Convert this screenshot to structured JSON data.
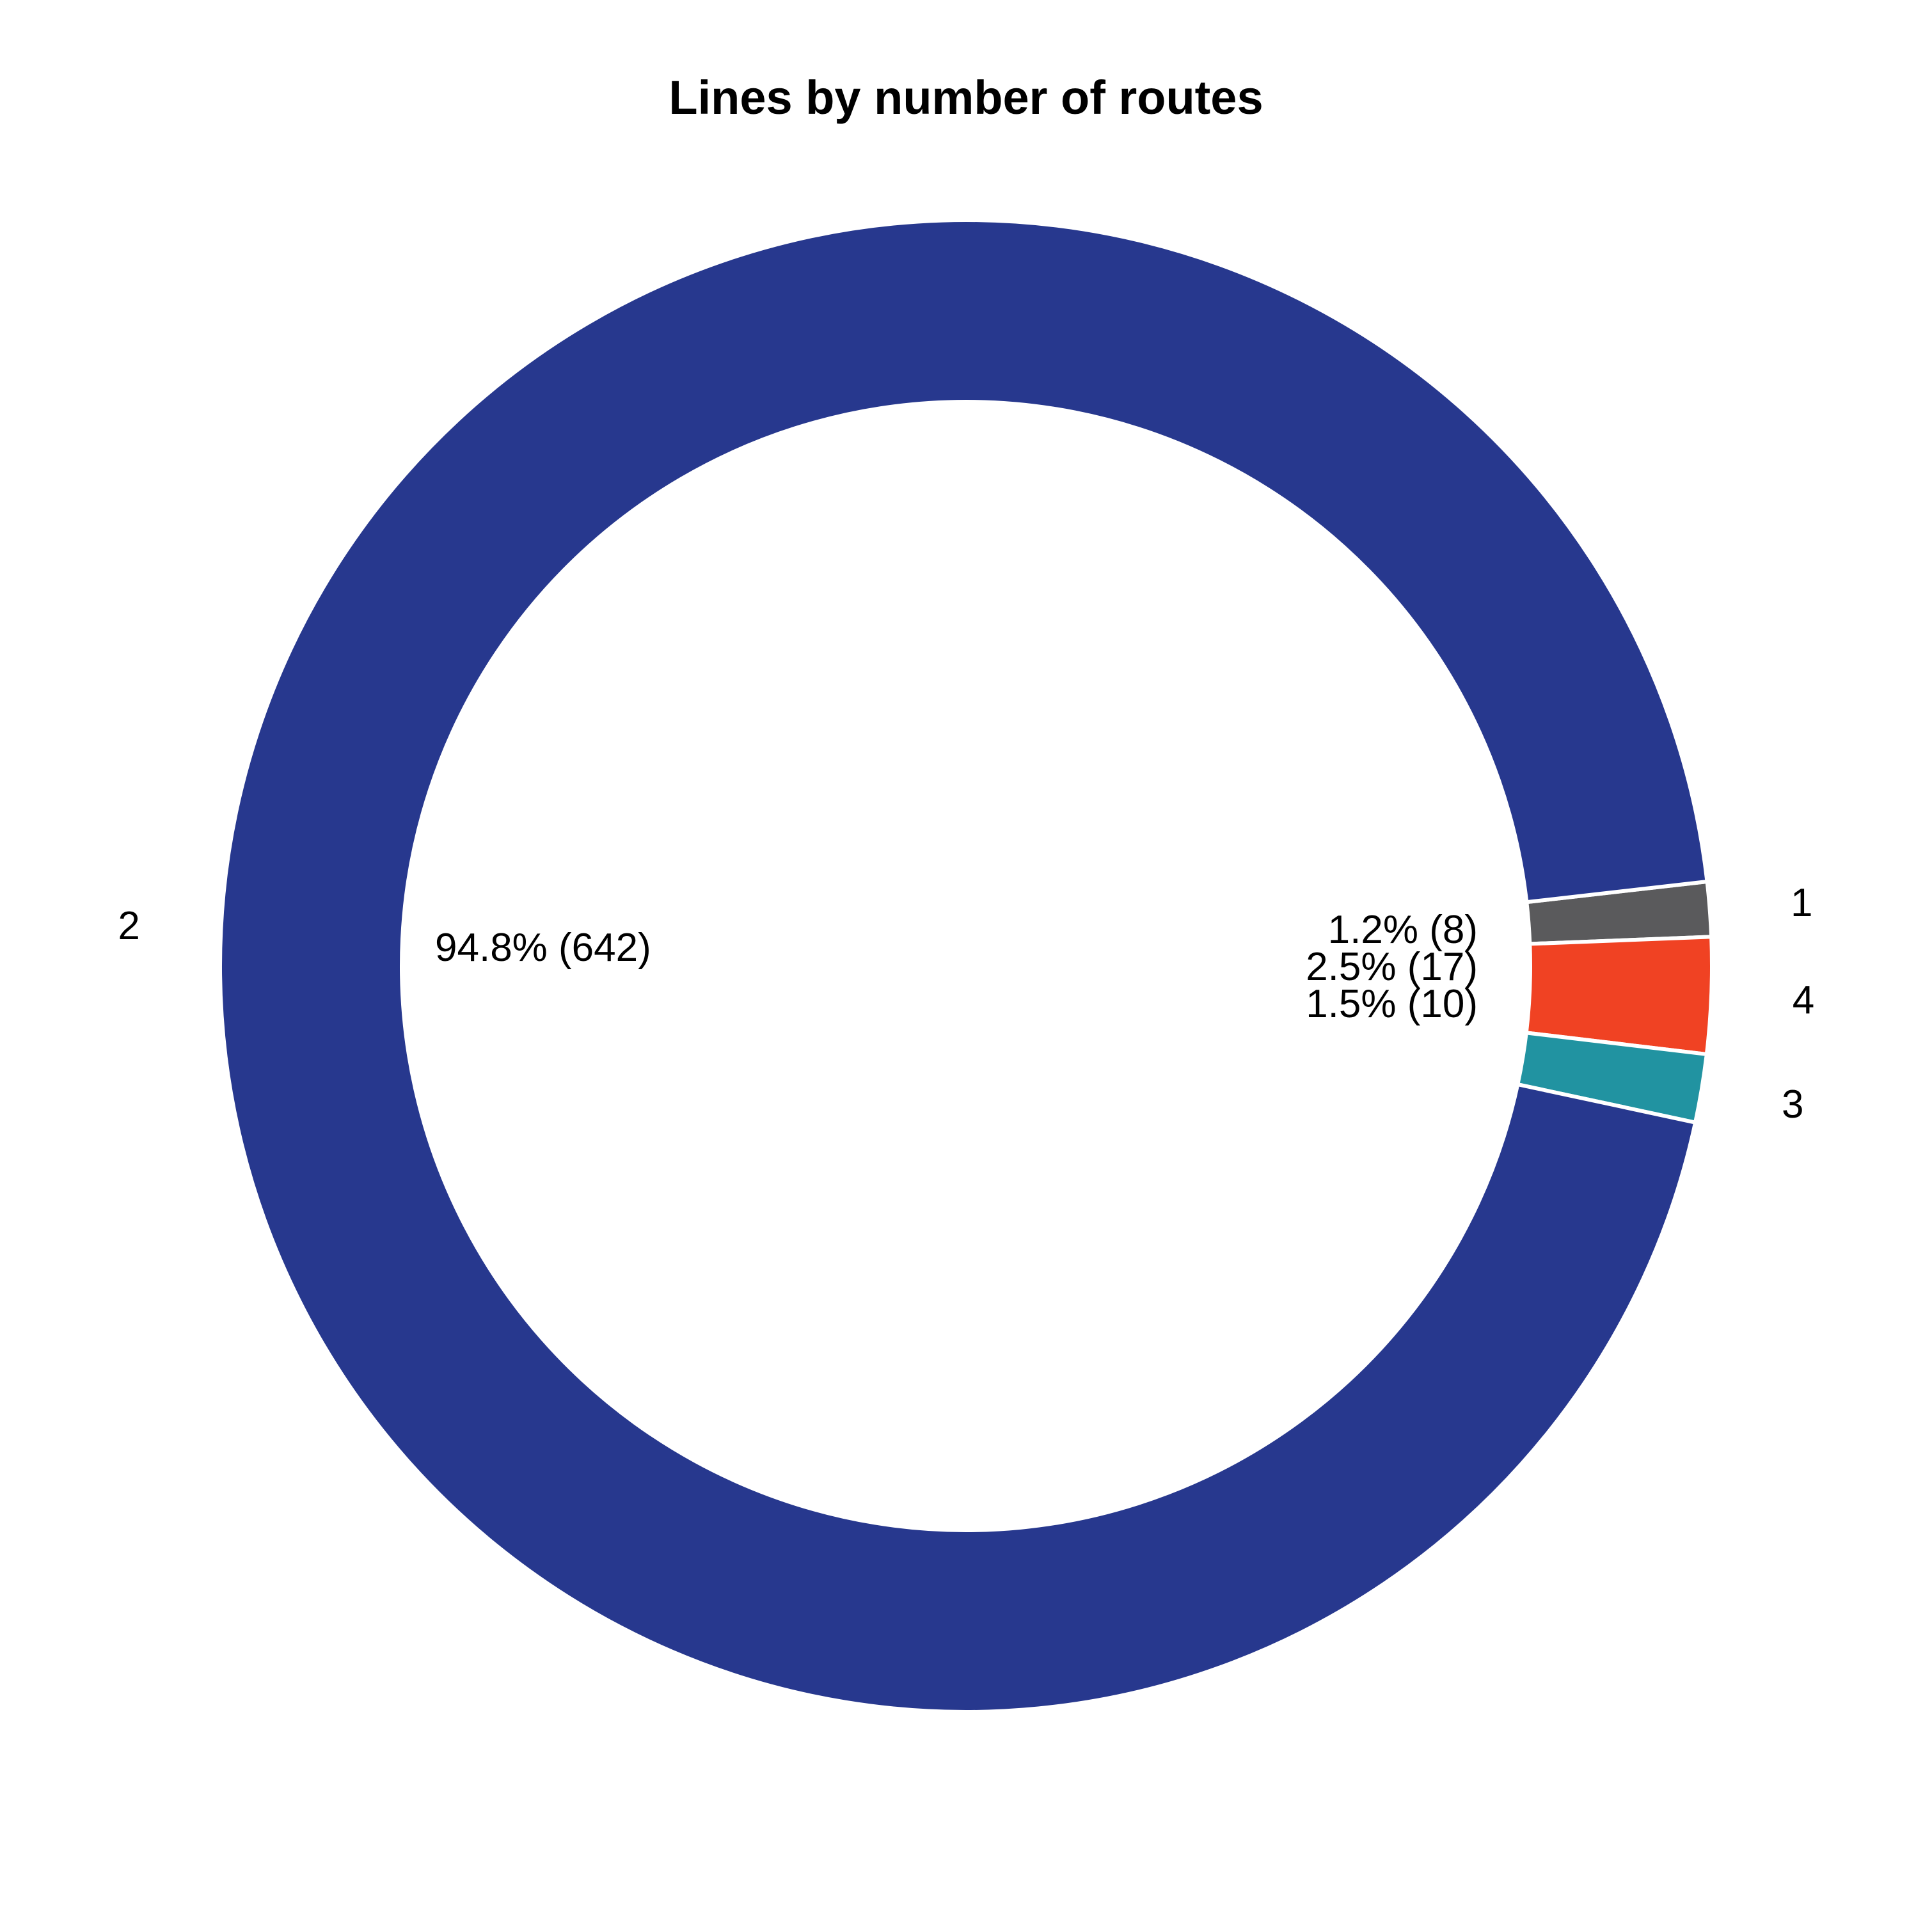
{
  "chart_data": {
    "type": "pie",
    "style": "donut",
    "title": "Lines by number of routes",
    "slices": [
      {
        "label": "1",
        "value": 8,
        "percent_label": "1.2% (8)",
        "color": "#5a5a5c"
      },
      {
        "label": "4",
        "value": 17,
        "percent_label": "2.5% (17)",
        "color": "#f04223"
      },
      {
        "label": "3",
        "value": 10,
        "percent_label": "1.5% (10)",
        "color": "#2193a1"
      },
      {
        "label": "2",
        "value": 642,
        "percent_label": "94.8% (642)",
        "color": "#27388e"
      }
    ],
    "legend": "none",
    "separator_color": "#ffffff"
  }
}
